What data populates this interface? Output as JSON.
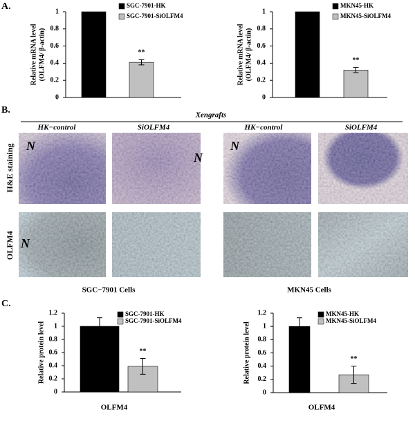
{
  "chart_data": [
    {
      "type": "bar",
      "ylabel": [
        "Relative mRNA level",
        "(OLFM4/ β-actin)"
      ],
      "ylim": [
        0,
        1
      ],
      "yticks": [
        0,
        0.2,
        0.4,
        0.6,
        0.8,
        1
      ],
      "series": [
        {
          "name": "SGC-7901-HK",
          "color": "#000000",
          "values": [
            1
          ]
        },
        {
          "name": "SGC-7901-SiOLFM4",
          "color": "#c0c0c0",
          "values": [
            0.41
          ],
          "errors": [
            0.03
          ],
          "annotation": "**"
        }
      ]
    },
    {
      "type": "bar",
      "ylabel": [
        "Relative mRNA level",
        "(OLFM4/ β-actin)"
      ],
      "ylim": [
        0,
        1
      ],
      "yticks": [
        0,
        0.2,
        0.4,
        0.6,
        0.8,
        1
      ],
      "series": [
        {
          "name": "MKN45-HK",
          "color": "#000000",
          "values": [
            1
          ]
        },
        {
          "name": "MKN45-SiOLFM4",
          "color": "#c0c0c0",
          "values": [
            0.32
          ],
          "errors": [
            0.03
          ],
          "annotation": "**"
        }
      ]
    },
    {
      "type": "bar",
      "ylabel": [
        "Relative protein level"
      ],
      "xlabel": "OLFM4",
      "ylim": [
        0,
        1.2
      ],
      "yticks": [
        0,
        0.2,
        0.4,
        0.6,
        0.8,
        1,
        1.2
      ],
      "series": [
        {
          "name": "SGC-7901-HK",
          "color": "#000000",
          "values": [
            1.0
          ],
          "errors": [
            0.13
          ]
        },
        {
          "name": "SGC-7901-SiOLFM4",
          "color": "#c0c0c0",
          "values": [
            0.39
          ],
          "errors": [
            0.12
          ],
          "annotation": "**"
        }
      ]
    },
    {
      "type": "bar",
      "ylabel": [
        "Relative protein level"
      ],
      "xlabel": "OLFM4",
      "ylim": [
        0,
        1.2
      ],
      "yticks": [
        0,
        0.2,
        0.4,
        0.6,
        0.8,
        1,
        1.2
      ],
      "series": [
        {
          "name": "MKN45-HK",
          "color": "#000000",
          "values": [
            1.0
          ],
          "errors": [
            0.13
          ]
        },
        {
          "name": "MKN45-SiOLFM4",
          "color": "#c0c0c0",
          "values": [
            0.27
          ],
          "errors": [
            0.13
          ],
          "annotation": "**"
        }
      ]
    }
  ],
  "figure": {
    "panel_labels": [
      "A.",
      "B.",
      "C."
    ],
    "section_title": "Xengrafts",
    "column_headers": [
      "HK−control",
      "SiOLFM4",
      "HK−control",
      "SiOLFM4"
    ],
    "row_labels": [
      "H&E staining",
      "OLFM4"
    ],
    "nuclei_marks": [
      "N",
      "N",
      "N",
      "N"
    ],
    "cell_lines": [
      "SGC−7901 Cells",
      "MKN45 Cells"
    ]
  }
}
